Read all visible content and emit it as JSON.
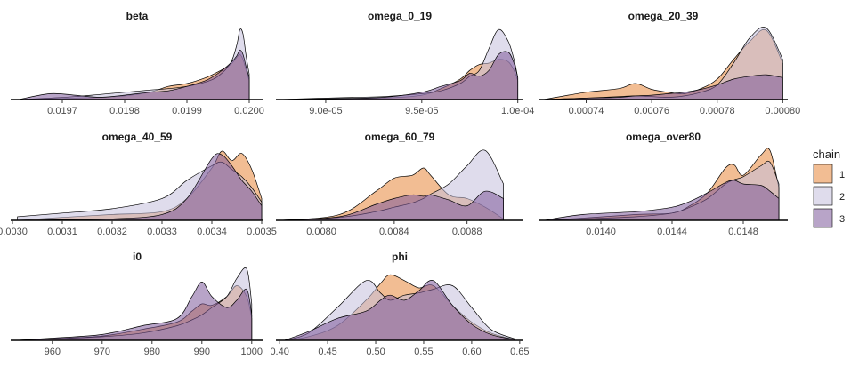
{
  "chart_data": {
    "type": "area",
    "legend": {
      "title": "chain",
      "position": "right",
      "entries": [
        {
          "label": "1",
          "color": "#E8873A"
        },
        {
          "label": "2",
          "color": "#C4C0DC"
        },
        {
          "label": "3",
          "color": "#7E5A9B"
        }
      ]
    },
    "panels": [
      {
        "title": "beta",
        "xlim": [
          0.01962,
          0.02002
        ],
        "ticks": [
          {
            "v": 0.0197,
            "label": "0.0197"
          },
          {
            "v": 0.0198,
            "label": "0.0198"
          },
          {
            "v": 0.0199,
            "label": "0.0199"
          },
          {
            "v": 0.02,
            "label": "0.0200"
          }
        ],
        "series": [
          {
            "name": "1",
            "x": [
              0.01963,
              0.01968,
              0.01972,
              0.01976,
              0.0198,
              0.01984,
              0.01987,
              0.0199,
              0.01993,
              0.01995,
              0.01997,
              0.01998,
              0.019985,
              0.01999,
              0.019995,
              0.02
            ],
            "y": [
              0,
              0.01,
              0.02,
              0.03,
              0.05,
              0.1,
              0.18,
              0.22,
              0.3,
              0.38,
              0.48,
              0.58,
              0.62,
              0.55,
              0.4,
              0.26
            ]
          },
          {
            "name": "2",
            "x": [
              0.01963,
              0.01968,
              0.01972,
              0.01976,
              0.0198,
              0.01984,
              0.01987,
              0.0199,
              0.01993,
              0.01995,
              0.01997,
              0.01998,
              0.019985,
              0.01999,
              0.019995,
              0.02
            ],
            "y": [
              0,
              0.02,
              0.04,
              0.07,
              0.1,
              0.13,
              0.15,
              0.18,
              0.24,
              0.32,
              0.5,
              0.75,
              0.96,
              0.9,
              0.6,
              0.35
            ]
          },
          {
            "name": "3",
            "x": [
              0.01963,
              0.01968,
              0.01972,
              0.01976,
              0.0198,
              0.01984,
              0.01987,
              0.0199,
              0.01993,
              0.01995,
              0.01997,
              0.01998,
              0.019985,
              0.01999,
              0.019995,
              0.02
            ],
            "y": [
              0,
              0.08,
              0.06,
              0.03,
              0.06,
              0.1,
              0.12,
              0.18,
              0.26,
              0.36,
              0.5,
              0.6,
              0.68,
              0.62,
              0.45,
              0.3
            ]
          }
        ]
      },
      {
        "title": "omega_0_19",
        "xlim": [
          8.75e-05,
          0.0001002
        ],
        "ticks": [
          {
            "v": 9e-05,
            "label": "9.0e-05"
          },
          {
            "v": 9.5e-05,
            "label": "9.5e-05"
          },
          {
            "v": 0.0001,
            "label": "1.0e-04"
          }
        ],
        "series": [
          {
            "name": "1",
            "x": [
              8.76e-05,
              9e-05,
              9.3e-05,
              9.5e-05,
              9.6e-05,
              9.7e-05,
              9.75e-05,
              9.8e-05,
              9.85e-05,
              9.9e-05,
              9.95e-05,
              9.98e-05,
              0.0001
            ],
            "y": [
              0,
              0.01,
              0.02,
              0.06,
              0.15,
              0.28,
              0.4,
              0.48,
              0.5,
              0.55,
              0.52,
              0.4,
              0.26
            ]
          },
          {
            "name": "2",
            "x": [
              8.76e-05,
              9e-05,
              9.3e-05,
              9.5e-05,
              9.6e-05,
              9.7e-05,
              9.75e-05,
              9.8e-05,
              9.85e-05,
              9.9e-05,
              9.95e-05,
              9.98e-05,
              0.0001
            ],
            "y": [
              0,
              0.02,
              0.04,
              0.08,
              0.12,
              0.22,
              0.32,
              0.4,
              0.7,
              0.96,
              0.8,
              0.55,
              0.3
            ]
          },
          {
            "name": "3",
            "x": [
              8.76e-05,
              9e-05,
              9.3e-05,
              9.5e-05,
              9.6e-05,
              9.7e-05,
              9.75e-05,
              9.8e-05,
              9.85e-05,
              9.9e-05,
              9.95e-05,
              9.98e-05,
              0.0001
            ],
            "y": [
              0,
              0.01,
              0.03,
              0.1,
              0.18,
              0.26,
              0.36,
              0.32,
              0.4,
              0.62,
              0.65,
              0.5,
              0.3
            ]
          }
        ]
      },
      {
        "title": "omega_20_39",
        "xlim": [
          0.000726,
          0.000801
        ],
        "ticks": [
          {
            "v": 0.00074,
            "label": "0.00074"
          },
          {
            "v": 0.00076,
            "label": "0.00076"
          },
          {
            "v": 0.00078,
            "label": "0.00078"
          },
          {
            "v": 0.0008,
            "label": "0.00080"
          }
        ],
        "series": [
          {
            "name": "1",
            "x": [
              0.000727,
              0.00074,
              0.00075,
              0.000755,
              0.00076,
              0.000765,
              0.00077,
              0.000775,
              0.00078,
              0.000785,
              0.00079,
              0.000795,
              0.0008
            ],
            "y": [
              0,
              0.1,
              0.15,
              0.22,
              0.14,
              0.1,
              0.08,
              0.15,
              0.28,
              0.55,
              0.8,
              0.95,
              0.5
            ]
          },
          {
            "name": "2",
            "x": [
              0.000727,
              0.00074,
              0.00075,
              0.000755,
              0.00076,
              0.000765,
              0.00077,
              0.000775,
              0.00078,
              0.000785,
              0.00079,
              0.000795,
              0.0008
            ],
            "y": [
              0,
              0.02,
              0.04,
              0.05,
              0.04,
              0.03,
              0.05,
              0.1,
              0.2,
              0.5,
              0.85,
              0.98,
              0.55
            ]
          },
          {
            "name": "3",
            "x": [
              0.000727,
              0.00074,
              0.00075,
              0.000755,
              0.00076,
              0.000765,
              0.00077,
              0.000775,
              0.00078,
              0.000785,
              0.00079,
              0.000795,
              0.0008
            ],
            "y": [
              0,
              0.02,
              0.03,
              0.05,
              0.06,
              0.08,
              0.1,
              0.14,
              0.2,
              0.28,
              0.32,
              0.34,
              0.3
            ]
          }
        ]
      },
      {
        "title": "omega_40_59",
        "xlim": [
          0.003,
          0.0035
        ],
        "ticks": [
          {
            "v": 0.003,
            "label": "0.0030"
          },
          {
            "v": 0.0031,
            "label": "0.0031"
          },
          {
            "v": 0.0032,
            "label": "0.0032"
          },
          {
            "v": 0.0033,
            "label": "0.0033"
          },
          {
            "v": 0.0034,
            "label": "0.0034"
          },
          {
            "v": 0.0035,
            "label": "0.0035"
          }
        ],
        "series": [
          {
            "name": "1",
            "x": [
              0.00301,
              0.0031,
              0.0032,
              0.0033,
              0.00335,
              0.0034,
              0.00342,
              0.00344,
              0.00346,
              0.00348,
              0.0035
            ],
            "y": [
              0,
              0.04,
              0.08,
              0.12,
              0.3,
              0.72,
              0.95,
              0.82,
              0.92,
              0.7,
              0.3
            ]
          },
          {
            "name": "2",
            "x": [
              0.00301,
              0.0031,
              0.0032,
              0.0033,
              0.00335,
              0.0034,
              0.00342,
              0.00344,
              0.00346,
              0.00348,
              0.0035
            ],
            "y": [
              0.05,
              0.1,
              0.16,
              0.3,
              0.55,
              0.75,
              0.8,
              0.7,
              0.6,
              0.45,
              0.25
            ]
          },
          {
            "name": "3",
            "x": [
              0.00301,
              0.0031,
              0.0032,
              0.0033,
              0.00335,
              0.0034,
              0.00342,
              0.00344,
              0.00346,
              0.00348,
              0.0035
            ],
            "y": [
              0,
              0.01,
              0.02,
              0.08,
              0.3,
              0.85,
              0.9,
              0.75,
              0.55,
              0.4,
              0.2
            ]
          }
        ]
      },
      {
        "title": "omega_60_79",
        "xlim": [
          0.00776,
          0.0091
        ],
        "ticks": [
          {
            "v": 0.008,
            "label": "0.0080"
          },
          {
            "v": 0.0084,
            "label": "0.0084"
          },
          {
            "v": 0.0088,
            "label": "0.0088"
          }
        ],
        "series": [
          {
            "name": "1",
            "x": [
              0.00778,
              0.0081,
              0.0083,
              0.0084,
              0.0085,
              0.00856,
              0.0086,
              0.0087,
              0.0088,
              0.0089,
              0.009
            ],
            "y": [
              0,
              0.08,
              0.4,
              0.58,
              0.62,
              0.72,
              0.62,
              0.35,
              0.3,
              0.18,
              0.02
            ]
          },
          {
            "name": "2",
            "x": [
              0.00778,
              0.0081,
              0.0083,
              0.0084,
              0.0085,
              0.00856,
              0.0086,
              0.0087,
              0.0088,
              0.0089,
              0.009
            ],
            "y": [
              0,
              0.04,
              0.12,
              0.18,
              0.24,
              0.3,
              0.36,
              0.5,
              0.75,
              0.96,
              0.5
            ]
          },
          {
            "name": "3",
            "x": [
              0.00778,
              0.0081,
              0.0083,
              0.0084,
              0.0085,
              0.00856,
              0.0086,
              0.0087,
              0.0088,
              0.0089,
              0.009
            ],
            "y": [
              0,
              0.05,
              0.22,
              0.3,
              0.35,
              0.33,
              0.35,
              0.28,
              0.2,
              0.4,
              0.3
            ]
          }
        ]
      },
      {
        "title": "omega_over80",
        "xlim": [
          0.01366,
          0.01504
        ],
        "ticks": [
          {
            "v": 0.014,
            "label": "0.0140"
          },
          {
            "v": 0.0144,
            "label": "0.0144"
          },
          {
            "v": 0.0148,
            "label": "0.0148"
          }
        ],
        "series": [
          {
            "name": "1",
            "x": [
              0.01368,
              0.0139,
              0.0142,
              0.0144,
              0.0145,
              0.0146,
              0.0147,
              0.01475,
              0.0148,
              0.0149,
              0.01495,
              0.015
            ],
            "y": [
              0,
              0.03,
              0.08,
              0.1,
              0.2,
              0.38,
              0.72,
              0.76,
              0.62,
              0.9,
              0.96,
              0.45
            ]
          },
          {
            "name": "2",
            "x": [
              0.01368,
              0.0139,
              0.0142,
              0.0144,
              0.0145,
              0.0146,
              0.0147,
              0.01475,
              0.0148,
              0.0149,
              0.01495,
              0.015
            ],
            "y": [
              0,
              0.02,
              0.05,
              0.1,
              0.18,
              0.3,
              0.5,
              0.56,
              0.6,
              0.75,
              0.8,
              0.5
            ]
          },
          {
            "name": "3",
            "x": [
              0.01368,
              0.0139,
              0.0142,
              0.0144,
              0.0145,
              0.0146,
              0.0147,
              0.01475,
              0.0148,
              0.0149,
              0.01495,
              0.015
            ],
            "y": [
              0,
              0.08,
              0.12,
              0.18,
              0.26,
              0.38,
              0.52,
              0.55,
              0.5,
              0.48,
              0.4,
              0.3
            ]
          }
        ]
      },
      {
        "title": "i0",
        "xlim": [
          952,
          1002
        ],
        "ticks": [
          {
            "v": 960,
            "label": "960"
          },
          {
            "v": 970,
            "label": "970"
          },
          {
            "v": 980,
            "label": "980"
          },
          {
            "v": 990,
            "label": "990"
          },
          {
            "v": 1000,
            "label": "1000"
          }
        ],
        "series": [
          {
            "name": "1",
            "x": [
              953,
              960,
              970,
              978,
              985,
              988,
              990,
              992,
              995,
              997,
              999,
              1000
            ],
            "y": [
              0,
              0.02,
              0.06,
              0.15,
              0.25,
              0.4,
              0.5,
              0.48,
              0.6,
              0.75,
              0.6,
              0.3
            ]
          },
          {
            "name": "2",
            "x": [
              953,
              960,
              970,
              978,
              985,
              988,
              990,
              992,
              995,
              997,
              999,
              1000
            ],
            "y": [
              0,
              0.02,
              0.05,
              0.1,
              0.2,
              0.28,
              0.35,
              0.45,
              0.6,
              0.85,
              0.98,
              0.5
            ]
          },
          {
            "name": "3",
            "x": [
              953,
              960,
              970,
              978,
              985,
              988,
              990,
              992,
              995,
              997,
              999,
              1000
            ],
            "y": [
              0,
              0.03,
              0.08,
              0.2,
              0.3,
              0.6,
              0.8,
              0.6,
              0.45,
              0.55,
              0.7,
              0.35
            ]
          }
        ]
      },
      {
        "title": "phi",
        "xlim": [
          0.398,
          0.652
        ],
        "ticks": [
          {
            "v": 0.4,
            "label": "0.40"
          },
          {
            "v": 0.45,
            "label": "0.45"
          },
          {
            "v": 0.5,
            "label": "0.50"
          },
          {
            "v": 0.55,
            "label": "0.55"
          },
          {
            "v": 0.6,
            "label": "0.60"
          },
          {
            "v": 0.65,
            "label": "0.65"
          }
        ],
        "series": [
          {
            "name": "1",
            "x": [
              0.405,
              0.43,
              0.46,
              0.49,
              0.505,
              0.515,
              0.53,
              0.545,
              0.56,
              0.58,
              0.6,
              0.62,
              0.645
            ],
            "y": [
              0,
              0.05,
              0.2,
              0.55,
              0.78,
              0.9,
              0.82,
              0.72,
              0.75,
              0.48,
              0.25,
              0.1,
              0.01
            ]
          },
          {
            "name": "2",
            "x": [
              0.405,
              0.43,
              0.46,
              0.49,
              0.505,
              0.515,
              0.53,
              0.545,
              0.56,
              0.58,
              0.6,
              0.62,
              0.645
            ],
            "y": [
              0,
              0.1,
              0.45,
              0.82,
              0.65,
              0.55,
              0.62,
              0.65,
              0.7,
              0.75,
              0.45,
              0.15,
              0.02
            ]
          },
          {
            "name": "3",
            "x": [
              0.405,
              0.43,
              0.46,
              0.49,
              0.505,
              0.515,
              0.53,
              0.545,
              0.56,
              0.58,
              0.6,
              0.62,
              0.645
            ],
            "y": [
              0,
              0.12,
              0.3,
              0.4,
              0.55,
              0.62,
              0.55,
              0.68,
              0.82,
              0.48,
              0.22,
              0.08,
              0.01
            ]
          }
        ]
      }
    ]
  }
}
